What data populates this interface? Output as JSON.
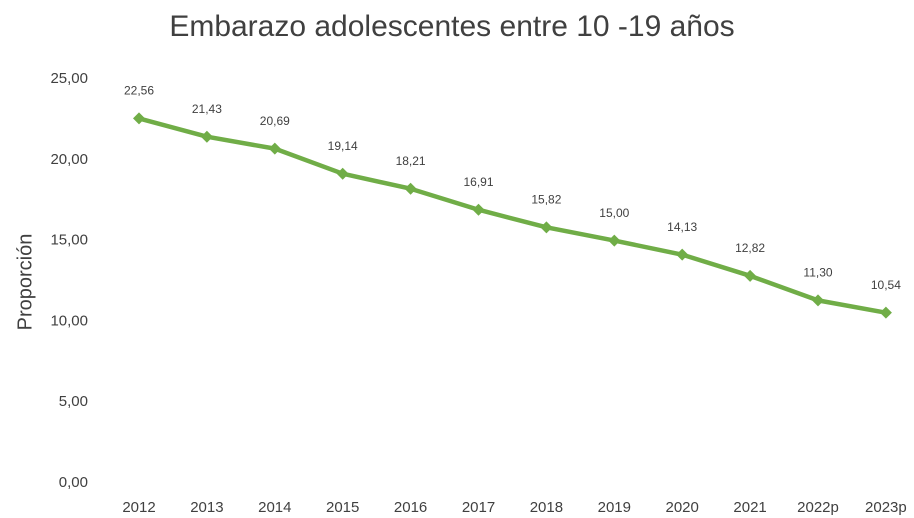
{
  "chart_data": {
    "type": "line",
    "title": "Embarazo adolescentes entre 10 -19 años",
    "y_label": "Proporción",
    "categories": [
      "2012",
      "2013",
      "2014",
      "2015",
      "2016",
      "2017",
      "2018",
      "2019",
      "2020",
      "2021",
      "2022p",
      "2023p"
    ],
    "values": [
      22.56,
      21.43,
      20.69,
      19.14,
      18.21,
      16.91,
      15.82,
      15.0,
      14.13,
      12.82,
      11.3,
      10.54
    ],
    "value_labels": [
      "22,56",
      "21,43",
      "20,69",
      "19,14",
      "18,21",
      "16,91",
      "15,82",
      "15,00",
      "14,13",
      "12,82",
      "11,30",
      "10,54"
    ],
    "color": "#70ad47",
    "ylim": [
      0,
      25
    ],
    "yticks": [
      {
        "value": 0,
        "label": "0,00"
      },
      {
        "value": 5,
        "label": "5,00"
      },
      {
        "value": 10,
        "label": "10,00"
      },
      {
        "value": 15,
        "label": "15,00"
      },
      {
        "value": 20,
        "label": "20,00"
      },
      {
        "value": 25,
        "label": "25,00"
      }
    ],
    "grid": false
  }
}
